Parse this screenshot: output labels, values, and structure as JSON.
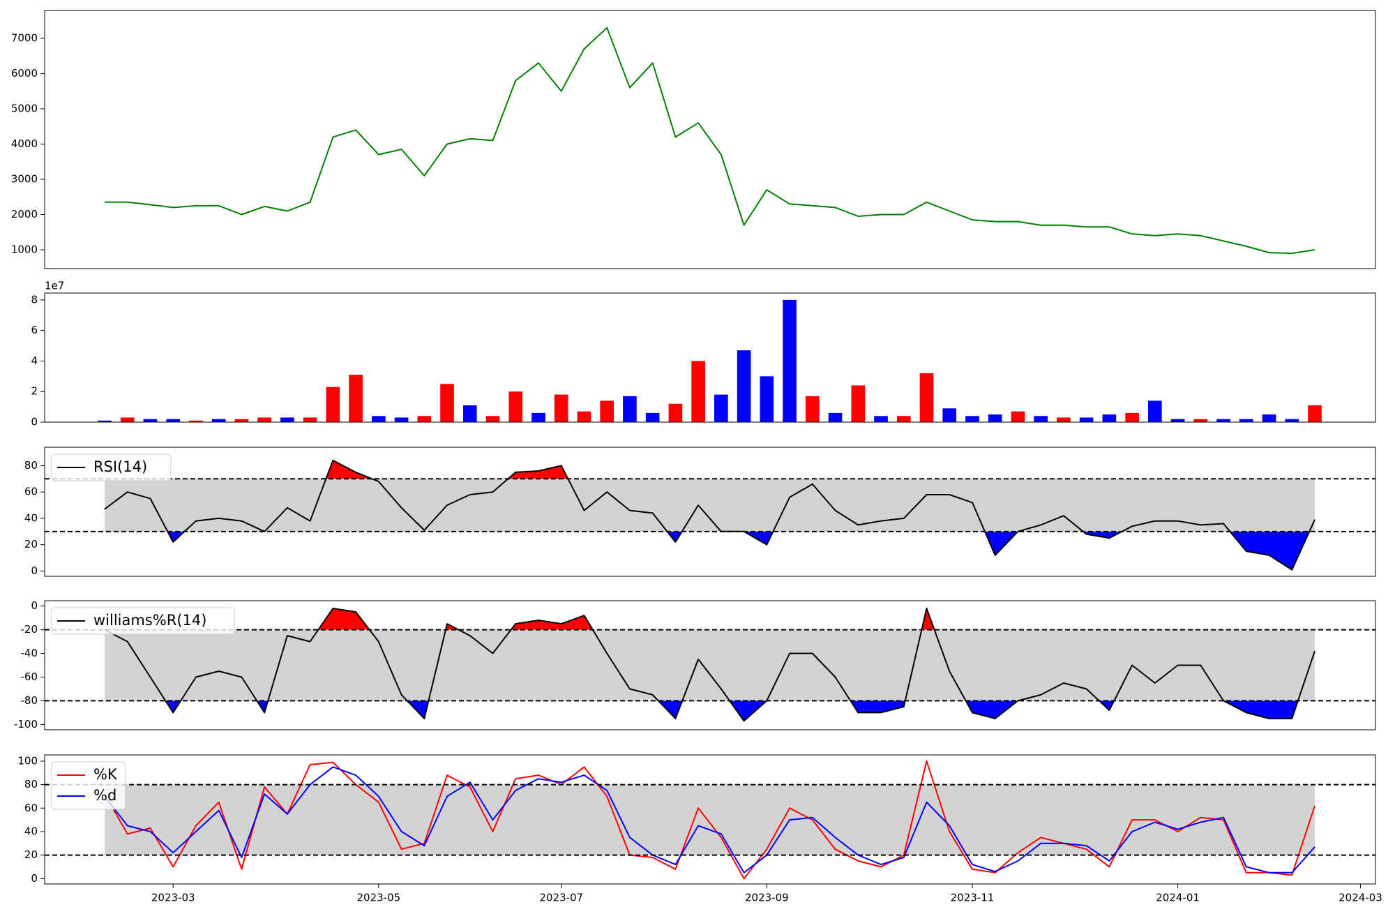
{
  "chart_data": [
    {
      "type": "line",
      "series": [
        {
          "color": "green",
          "values": [
            2350,
            2350,
            2280,
            2200,
            2250,
            2250,
            2000,
            2230,
            2100,
            2350,
            4200,
            4400,
            3700,
            3850,
            3100,
            4000,
            4150,
            4100,
            5800,
            6300,
            5500,
            6700,
            7300,
            5600,
            6300,
            4200,
            4600,
            3700,
            1700,
            2700,
            2300,
            2250,
            2200,
            1950,
            2000,
            2000,
            2350,
            2100,
            1850,
            1800,
            1800,
            1700,
            1700,
            1650,
            1650,
            1450,
            1400,
            1450,
            1400,
            1250,
            1100,
            920,
            900,
            1000,
            null,
            null
          ]
        }
      ],
      "ylim": [
        466,
        7790
      ],
      "yticks": [
        1000,
        2000,
        3000,
        4000,
        5000,
        6000,
        7000
      ]
    },
    {
      "type": "bar",
      "values": [
        0.1,
        0.3,
        0.2,
        0.2,
        0.1,
        0.2,
        0.2,
        0.3,
        0.3,
        0.3,
        2.3,
        3.1,
        0.4,
        0.3,
        0.4,
        2.5,
        1.1,
        0.4,
        2.0,
        0.6,
        1.8,
        0.7,
        1.4,
        1.7,
        0.6,
        1.2,
        4.0,
        1.8,
        4.7,
        3.0,
        8.0,
        1.7,
        0.6,
        2.4,
        0.4,
        0.4,
        3.2,
        0.9,
        0.4,
        0.5,
        0.7,
        0.4,
        0.3,
        0.3,
        0.5,
        0.6,
        1.4,
        0.2,
        0.2,
        0.2,
        0.2,
        0.5,
        0.2,
        1.1,
        null,
        null
      ],
      "colors": [
        "blue",
        "red",
        "blue",
        "blue",
        "red",
        "blue",
        "red",
        "red",
        "blue",
        "red",
        "red",
        "red",
        "blue",
        "blue",
        "red",
        "red",
        "blue",
        "red",
        "red",
        "blue",
        "red",
        "red",
        "red",
        "blue",
        "blue",
        "red",
        "red",
        "blue",
        "blue",
        "blue",
        "blue",
        "red",
        "blue",
        "red",
        "blue",
        "red",
        "red",
        "blue",
        "blue",
        "blue",
        "red",
        "blue",
        "red",
        "blue",
        "blue",
        "red",
        "blue",
        "blue",
        "red",
        "blue",
        "blue",
        "blue",
        "blue",
        "red",
        null,
        null
      ],
      "y_offset_label": "1e7",
      "ylim": [
        0,
        8.45
      ],
      "yticks": [
        0,
        2,
        4,
        6,
        8
      ]
    },
    {
      "type": "oscillator",
      "legend": "upper left",
      "series": [
        {
          "name": "RSI(14)",
          "color": "black",
          "values": [
            47,
            60,
            55,
            22,
            38,
            40,
            38,
            30,
            48,
            38,
            84,
            75,
            68,
            48,
            31,
            50,
            58,
            60,
            75,
            76,
            80,
            46,
            60,
            46,
            44,
            22,
            50,
            30,
            30,
            20,
            56,
            66,
            46,
            35,
            38,
            40,
            58,
            58,
            52,
            12,
            30,
            35,
            42,
            28,
            25,
            34,
            38,
            38,
            35,
            36,
            15,
            12,
            1,
            39,
            null,
            null
          ]
        }
      ],
      "levels": [
        30,
        70
      ],
      "band_color": "lightgray",
      "above_color": "red",
      "below_color": "blue",
      "ylim": [
        -4,
        94
      ],
      "yticks": [
        0,
        20,
        40,
        60,
        80
      ]
    },
    {
      "type": "oscillator",
      "legend": "upper left",
      "series": [
        {
          "name": "williams%R(14)",
          "color": "black",
          "values": [
            -20,
            -30,
            -60,
            -90,
            -60,
            -55,
            -60,
            -90,
            -25,
            -30,
            -2,
            -5,
            -30,
            -75,
            -95,
            -15,
            -25,
            -40,
            -15,
            -12,
            -15,
            -8,
            -40,
            -70,
            -75,
            -95,
            -45,
            -70,
            -97,
            -80,
            -40,
            -40,
            -60,
            -90,
            -90,
            -85,
            -2,
            -55,
            -90,
            -95,
            -80,
            -75,
            -65,
            -70,
            -88,
            -50,
            -65,
            -50,
            -50,
            -80,
            -90,
            -95,
            -95,
            -38,
            null,
            null
          ]
        }
      ],
      "levels": [
        -80,
        -20
      ],
      "band_color": "lightgray",
      "above_color": "red",
      "below_color": "blue",
      "ylim": [
        -104.5,
        4.5
      ],
      "yticks": [
        -100,
        -80,
        -60,
        -40,
        -20,
        0
      ]
    },
    {
      "type": "oscillator",
      "legend": "upper left",
      "series": [
        {
          "name": "%K",
          "color": "red",
          "values": [
            72,
            38,
            43,
            10,
            45,
            65,
            8,
            78,
            55,
            97,
            99,
            80,
            65,
            25,
            30,
            88,
            78,
            40,
            85,
            88,
            80,
            95,
            70,
            20,
            18,
            8,
            60,
            35,
            0,
            25,
            60,
            50,
            25,
            15,
            10,
            20,
            100,
            40,
            8,
            5,
            22,
            35,
            30,
            25,
            10,
            50,
            50,
            40,
            52,
            50,
            5,
            5,
            3,
            62,
            null,
            null
          ]
        },
        {
          "name": "%d",
          "color": "blue",
          "values": [
            70,
            45,
            40,
            22,
            40,
            58,
            18,
            72,
            55,
            80,
            95,
            88,
            70,
            40,
            28,
            70,
            82,
            50,
            75,
            85,
            82,
            88,
            75,
            35,
            20,
            12,
            45,
            38,
            5,
            20,
            50,
            52,
            35,
            20,
            12,
            18,
            65,
            45,
            12,
            6,
            15,
            30,
            30,
            28,
            15,
            40,
            48,
            42,
            48,
            52,
            10,
            5,
            5,
            27,
            null,
            null
          ]
        }
      ],
      "levels": [
        20,
        80
      ],
      "band_color": "lightgray",
      "ylim": [
        -4.6,
        105.3
      ],
      "yticks": [
        0,
        20,
        40,
        60,
        80,
        100
      ],
      "categories": [
        null,
        null,
        null,
        "2023-03",
        null,
        null,
        null,
        null,
        null,
        null,
        null,
        null,
        "2023-05",
        null,
        null,
        null,
        null,
        null,
        null,
        null,
        "2023-07",
        null,
        null,
        null,
        null,
        null,
        null,
        null,
        null,
        "2023-09",
        null,
        null,
        null,
        null,
        null,
        null,
        null,
        null,
        "2023-11",
        null,
        null,
        null,
        null,
        null,
        null,
        null,
        null,
        "2024-01",
        null,
        null,
        null,
        null,
        null,
        null,
        null,
        "2024-03"
      ]
    }
  ]
}
